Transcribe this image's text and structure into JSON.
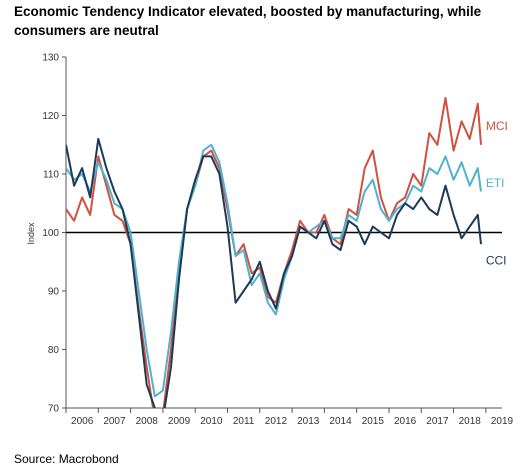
{
  "title": "Economic Tendency Indicator elevated, boosted by manufacturing, while consumers are neutral",
  "source": "Source: Macrobond",
  "colors": {
    "MCI": "#d1503f",
    "ETI": "#4fb3cf",
    "CCI": "#1b3a57",
    "axis": "#000000"
  },
  "chart_data": {
    "type": "line",
    "title": "Economic Tendency Indicator elevated, boosted by manufacturing, while consumers are neutral",
    "xlabel": "",
    "ylabel": "Index",
    "xlim": [
      2006.0,
      2019.5
    ],
    "ylim": [
      70,
      130
    ],
    "yticks": [
      70,
      80,
      90,
      100,
      110,
      120,
      130
    ],
    "xtick_labels": [
      "2006",
      "2007",
      "2008",
      "2009",
      "2010",
      "2011",
      "2012",
      "2013",
      "2014",
      "2015",
      "2016",
      "2017",
      "2018",
      "2019"
    ],
    "reference_line": 100,
    "grid": false,
    "legend": "inline labels at right end of series",
    "series": [
      {
        "name": "MCI",
        "x": [
          2006.0,
          2006.25,
          2006.5,
          2006.75,
          2007.0,
          2007.25,
          2007.5,
          2007.75,
          2008.0,
          2008.25,
          2008.5,
          2008.75,
          2009.0,
          2009.25,
          2009.5,
          2009.75,
          2010.0,
          2010.25,
          2010.5,
          2010.75,
          2011.0,
          2011.25,
          2011.5,
          2011.75,
          2012.0,
          2012.25,
          2012.5,
          2012.75,
          2013.0,
          2013.25,
          2013.5,
          2013.75,
          2014.0,
          2014.25,
          2014.5,
          2014.75,
          2015.0,
          2015.25,
          2015.5,
          2015.75,
          2016.0,
          2016.25,
          2016.5,
          2016.75,
          2017.0,
          2017.25,
          2017.5,
          2017.75,
          2018.0,
          2018.25,
          2018.5,
          2018.75,
          2018.85
        ],
        "values": [
          104,
          102,
          106,
          103,
          113,
          108,
          103,
          102,
          98,
          87,
          77,
          68,
          69,
          80,
          94,
          104,
          108,
          113,
          114,
          111,
          104,
          96,
          98,
          93,
          94,
          89,
          88,
          93,
          97,
          102,
          100,
          100,
          103,
          99,
          98,
          104,
          103,
          111,
          114,
          106,
          102,
          105,
          106,
          110,
          108,
          117,
          115,
          123,
          114,
          119,
          116,
          122,
          115
        ]
      },
      {
        "name": "ETI",
        "x": [
          2006.0,
          2006.25,
          2006.5,
          2006.75,
          2007.0,
          2007.25,
          2007.5,
          2007.75,
          2008.0,
          2008.25,
          2008.5,
          2008.75,
          2009.0,
          2009.25,
          2009.5,
          2009.75,
          2010.0,
          2010.25,
          2010.5,
          2010.75,
          2011.0,
          2011.25,
          2011.5,
          2011.75,
          2012.0,
          2012.25,
          2012.5,
          2012.75,
          2013.0,
          2013.25,
          2013.5,
          2013.75,
          2014.0,
          2014.25,
          2014.5,
          2014.75,
          2015.0,
          2015.25,
          2015.5,
          2015.75,
          2016.0,
          2016.25,
          2016.5,
          2016.75,
          2017.0,
          2017.25,
          2017.5,
          2017.75,
          2018.0,
          2018.25,
          2018.5,
          2018.75,
          2018.85
        ],
        "values": [
          111,
          109,
          110,
          107,
          112,
          109,
          105,
          104,
          100,
          90,
          80,
          72,
          73,
          83,
          95,
          104,
          108,
          114,
          115,
          112,
          105,
          96,
          97,
          91,
          93,
          88,
          86,
          92,
          96,
          101,
          100,
          101,
          102,
          99,
          99,
          103,
          102,
          107,
          109,
          104,
          102,
          104,
          105,
          108,
          107,
          111,
          110,
          113,
          109,
          112,
          108,
          111,
          107
        ]
      },
      {
        "name": "CCI",
        "x": [
          2006.0,
          2006.25,
          2006.5,
          2006.75,
          2007.0,
          2007.25,
          2007.5,
          2007.75,
          2008.0,
          2008.25,
          2008.5,
          2008.75,
          2009.0,
          2009.25,
          2009.5,
          2009.75,
          2010.0,
          2010.25,
          2010.5,
          2010.75,
          2011.0,
          2011.25,
          2011.5,
          2011.75,
          2012.0,
          2012.25,
          2012.5,
          2012.75,
          2013.0,
          2013.25,
          2013.5,
          2013.75,
          2014.0,
          2014.25,
          2014.5,
          2014.75,
          2015.0,
          2015.25,
          2015.5,
          2015.75,
          2016.0,
          2016.25,
          2016.5,
          2016.75,
          2017.0,
          2017.25,
          2017.5,
          2017.75,
          2018.0,
          2018.25,
          2018.5,
          2018.75,
          2018.85
        ],
        "values": [
          115,
          108,
          111,
          106,
          116,
          111,
          107,
          104,
          98,
          86,
          74,
          70,
          68,
          77,
          92,
          104,
          109,
          113,
          113,
          110,
          101,
          88,
          90,
          92,
          95,
          90,
          87,
          93,
          96,
          101,
          100,
          99,
          102,
          98,
          97,
          102,
          101,
          98,
          101,
          100,
          99,
          103,
          105,
          104,
          106,
          104,
          103,
          108,
          103,
          99,
          101,
          103,
          98
        ]
      }
    ]
  }
}
